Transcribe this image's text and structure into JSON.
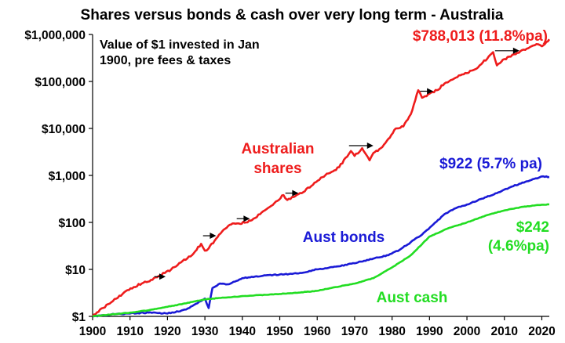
{
  "chart_data": {
    "type": "line",
    "title": "Shares versus bonds & cash over very long term - Australia",
    "subtitle_lines": [
      "Value of $1 invested in Jan",
      "1900, pre fees & taxes"
    ],
    "y_scale": "log",
    "xlim": [
      1900,
      2022
    ],
    "ylim": [
      1,
      1000000
    ],
    "x_ticks": [
      1900,
      1910,
      1920,
      1930,
      1940,
      1950,
      1960,
      1970,
      1980,
      1990,
      2000,
      2010,
      2020
    ],
    "y_ticks": [
      {
        "value": 1,
        "label": "$1"
      },
      {
        "value": 10,
        "label": "$10"
      },
      {
        "value": 100,
        "label": "$100"
      },
      {
        "value": 1000,
        "label": "$1,000"
      },
      {
        "value": 10000,
        "label": "$10,000"
      },
      {
        "value": 100000,
        "label": "$100,000"
      },
      {
        "value": 1000000,
        "label": "$1,000,000"
      }
    ],
    "grid": false,
    "legend": "none",
    "series": [
      {
        "name": "Australian shares",
        "color": "#ee1c1c",
        "points": [
          [
            1900,
            1
          ],
          [
            1902,
            1.4
          ],
          [
            1905,
            2
          ],
          [
            1908,
            3
          ],
          [
            1911,
            4.2
          ],
          [
            1914,
            5.5
          ],
          [
            1916,
            6
          ],
          [
            1918,
            7.5
          ],
          [
            1921,
            10
          ],
          [
            1924,
            15
          ],
          [
            1927,
            22
          ],
          [
            1929,
            35
          ],
          [
            1930,
            25
          ],
          [
            1931,
            28
          ],
          [
            1933,
            45
          ],
          [
            1935,
            70
          ],
          [
            1937,
            90
          ],
          [
            1939,
            95
          ],
          [
            1941,
            100
          ],
          [
            1943,
            120
          ],
          [
            1946,
            180
          ],
          [
            1949,
            280
          ],
          [
            1951,
            380
          ],
          [
            1952,
            300
          ],
          [
            1955,
            400
          ],
          [
            1958,
            550
          ],
          [
            1961,
            900
          ],
          [
            1963,
            1100
          ],
          [
            1965,
            1300
          ],
          [
            1968,
            2500
          ],
          [
            1969,
            3300
          ],
          [
            1970,
            2600
          ],
          [
            1972,
            3800
          ],
          [
            1974,
            2100
          ],
          [
            1975,
            3000
          ],
          [
            1977,
            3800
          ],
          [
            1979,
            6000
          ],
          [
            1981,
            10000
          ],
          [
            1983,
            11000
          ],
          [
            1985,
            20000
          ],
          [
            1987,
            65000
          ],
          [
            1988,
            45000
          ],
          [
            1990,
            55000
          ],
          [
            1992,
            65000
          ],
          [
            1994,
            90000
          ],
          [
            1997,
            120000
          ],
          [
            2000,
            150000
          ],
          [
            2003,
            200000
          ],
          [
            2007,
            420000
          ],
          [
            2008,
            220000
          ],
          [
            2010,
            300000
          ],
          [
            2013,
            380000
          ],
          [
            2016,
            500000
          ],
          [
            2019,
            620000
          ],
          [
            2020,
            560000
          ],
          [
            2022,
            788013
          ]
        ]
      },
      {
        "name": "Aust bonds",
        "color": "#1a1ad6",
        "points": [
          [
            1900,
            1
          ],
          [
            1905,
            1.1
          ],
          [
            1910,
            1.15
          ],
          [
            1915,
            1.2
          ],
          [
            1920,
            1.15
          ],
          [
            1925,
            1.4
          ],
          [
            1928,
            1.9
          ],
          [
            1930,
            2.4
          ],
          [
            1931,
            1.5
          ],
          [
            1932,
            4
          ],
          [
            1934,
            5
          ],
          [
            1936,
            4.8
          ],
          [
            1938,
            5.5
          ],
          [
            1940,
            6.5
          ],
          [
            1945,
            7.2
          ],
          [
            1950,
            7.8
          ],
          [
            1955,
            8.2
          ],
          [
            1960,
            10
          ],
          [
            1965,
            11.5
          ],
          [
            1970,
            13.5
          ],
          [
            1975,
            17
          ],
          [
            1979,
            20
          ],
          [
            1982,
            26
          ],
          [
            1985,
            38
          ],
          [
            1988,
            55
          ],
          [
            1991,
            90
          ],
          [
            1994,
            150
          ],
          [
            1997,
            200
          ],
          [
            2000,
            240
          ],
          [
            2004,
            320
          ],
          [
            2008,
            420
          ],
          [
            2012,
            580
          ],
          [
            2016,
            750
          ],
          [
            2020,
            950
          ],
          [
            2022,
            922
          ]
        ]
      },
      {
        "name": "Aust cash",
        "color": "#22dd22",
        "points": [
          [
            1900,
            1
          ],
          [
            1905,
            1.1
          ],
          [
            1910,
            1.2
          ],
          [
            1915,
            1.35
          ],
          [
            1920,
            1.6
          ],
          [
            1925,
            1.9
          ],
          [
            1930,
            2.3
          ],
          [
            1935,
            2.5
          ],
          [
            1940,
            2.7
          ],
          [
            1945,
            2.85
          ],
          [
            1950,
            3
          ],
          [
            1955,
            3.2
          ],
          [
            1960,
            3.5
          ],
          [
            1965,
            4.2
          ],
          [
            1970,
            5
          ],
          [
            1975,
            6.5
          ],
          [
            1980,
            11
          ],
          [
            1985,
            20
          ],
          [
            1990,
            50
          ],
          [
            1995,
            75
          ],
          [
            2000,
            100
          ],
          [
            2005,
            140
          ],
          [
            2010,
            180
          ],
          [
            2015,
            215
          ],
          [
            2020,
            238
          ],
          [
            2022,
            242
          ]
        ]
      }
    ],
    "annotations": [
      {
        "series": "Australian shares",
        "lines": [
          "Australian",
          "shares"
        ]
      },
      {
        "series": "Australian shares",
        "lines": [
          "$788,013 (11.8%pa)"
        ]
      },
      {
        "series": "Aust bonds",
        "lines": [
          "Aust bonds"
        ]
      },
      {
        "series": "Aust bonds",
        "lines": [
          "$922 (5.7% pa)"
        ]
      },
      {
        "series": "Aust cash",
        "lines": [
          "Aust cash"
        ]
      },
      {
        "series": "Aust cash",
        "lines": [
          "$242",
          "(4.6%pa)"
        ]
      }
    ],
    "arrows": [
      {
        "from": [
          1916.5,
          7.0
        ],
        "to": [
          1919.5,
          7.0
        ]
      },
      {
        "from": [
          1929.5,
          52
        ],
        "to": [
          1933,
          52
        ]
      },
      {
        "from": [
          1938.5,
          120
        ],
        "to": [
          1942,
          120
        ]
      },
      {
        "from": [
          1951.5,
          420
        ],
        "to": [
          1955,
          420
        ]
      },
      {
        "from": [
          1968.5,
          4300
        ],
        "to": [
          1975,
          4300
        ]
      },
      {
        "from": [
          1987.5,
          62000
        ],
        "to": [
          1991,
          62000
        ]
      },
      {
        "from": [
          2007.5,
          450000
        ],
        "to": [
          2014,
          450000
        ]
      }
    ]
  }
}
